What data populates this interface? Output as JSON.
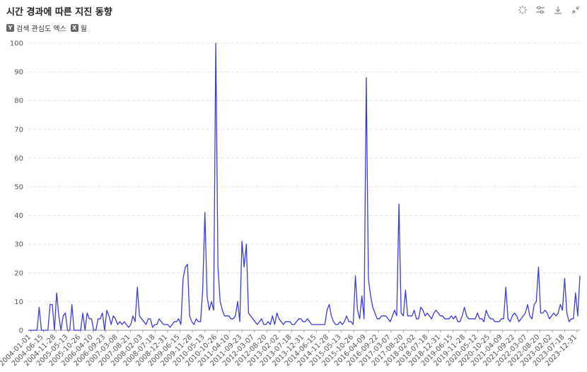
{
  "header": {
    "title": "시간 경과에 따른 지진 동향"
  },
  "toolbar": {
    "icons": [
      "sparkle-icon",
      "filter-icon",
      "download-icon",
      "collapse-icon"
    ]
  },
  "filters": [
    {
      "icon_letter": "Y",
      "label": "검색 관심도 엑스"
    },
    {
      "icon_letter": "X",
      "label": "월"
    }
  ],
  "colors": {
    "line": "#3b3bd9",
    "grid": "#e4e4e4",
    "axis": "#999999"
  },
  "chart_data": {
    "type": "line",
    "title": "시간 경과에 따른 지진 동향",
    "xlabel": "월",
    "ylabel": "검색 관심도 엑스",
    "ylim": [
      0,
      100
    ],
    "yticks": [
      0,
      10,
      20,
      30,
      40,
      50,
      60,
      70,
      80,
      90,
      100
    ],
    "grid": true,
    "x_tick_labels": [
      "2004-01-01",
      "2004-06-15",
      "2004-11-28",
      "2005-05-13",
      "2005-10-26",
      "2006-04-10",
      "2006-09-23",
      "2007-03-08",
      "2007-08-21",
      "2008-02-03",
      "2008-07-18",
      "2008-12-31",
      "2009-06-15",
      "2009-11-28",
      "2010-05-13",
      "2010-10-26",
      "2011-04-10",
      "2011-09-23",
      "2012-03-07",
      "2012-08-20",
      "2013-02-02",
      "2013-07-18",
      "2013-12-31",
      "2014-06-15",
      "2014-11-28",
      "2015-05-13",
      "2015-10-26",
      "2016-04-09",
      "2016-09-22",
      "2017-03-07",
      "2017-08-20",
      "2018-02-02",
      "2018-07-18",
      "2018-12-31",
      "2019-06-15",
      "2019-11-28",
      "2020-05-12",
      "2020-10-25",
      "2021-04-09",
      "2021-09-22",
      "2022-03-07",
      "2022-08-20",
      "2023-02-02",
      "2023-07-18",
      "2023-12-31"
    ],
    "series": [
      {
        "values": [
          0,
          0,
          0,
          0,
          0,
          8,
          0,
          0,
          0,
          0,
          9,
          9,
          0,
          13,
          5,
          0,
          5,
          6,
          0,
          0,
          9,
          0,
          0,
          0,
          0,
          6,
          0,
          6,
          4,
          4,
          0,
          0,
          4,
          4,
          6,
          0,
          7,
          5,
          2,
          5,
          4,
          2,
          3,
          2,
          3,
          2,
          1,
          2,
          5,
          3,
          15,
          5,
          4,
          3,
          2,
          4,
          4,
          1,
          2,
          2,
          4,
          3,
          2,
          2,
          2,
          1,
          2,
          3,
          3,
          4,
          2,
          18,
          22,
          23,
          5,
          3,
          2,
          4,
          3,
          3,
          14,
          41,
          12,
          7,
          10,
          7,
          100,
          22,
          10,
          7,
          5,
          5,
          5,
          4,
          4,
          5,
          10,
          3,
          31,
          22,
          30,
          6,
          5,
          4,
          3,
          2,
          3,
          4,
          2,
          2,
          3,
          2,
          5,
          2,
          6,
          4,
          3,
          2,
          3,
          3,
          3,
          2,
          2,
          3,
          4,
          4,
          3,
          3,
          4,
          3,
          2,
          2,
          2,
          2,
          2,
          2,
          2,
          7,
          9,
          5,
          3,
          2,
          2,
          3,
          2,
          3,
          5,
          3,
          3,
          2,
          19,
          7,
          4,
          12,
          4,
          88,
          18,
          12,
          8,
          6,
          4,
          4,
          5,
          5,
          5,
          4,
          3,
          5,
          7,
          5,
          44,
          6,
          5,
          14,
          5,
          5,
          5,
          7,
          4,
          4,
          8,
          7,
          5,
          6,
          5,
          4,
          6,
          7,
          6,
          5,
          5,
          4,
          4,
          4,
          5,
          4,
          5,
          3,
          3,
          5,
          8,
          5,
          4,
          4,
          4,
          4,
          6,
          4,
          4,
          3,
          7,
          5,
          4,
          4,
          3,
          3,
          3,
          4,
          4,
          15,
          4,
          3,
          5,
          6,
          5,
          3,
          4,
          5,
          6,
          9,
          5,
          4,
          9,
          10,
          22,
          6,
          6,
          7,
          6,
          4,
          5,
          6,
          5,
          6,
          9,
          7,
          18,
          6,
          3,
          4,
          4,
          13,
          5,
          19
        ]
      }
    ]
  }
}
